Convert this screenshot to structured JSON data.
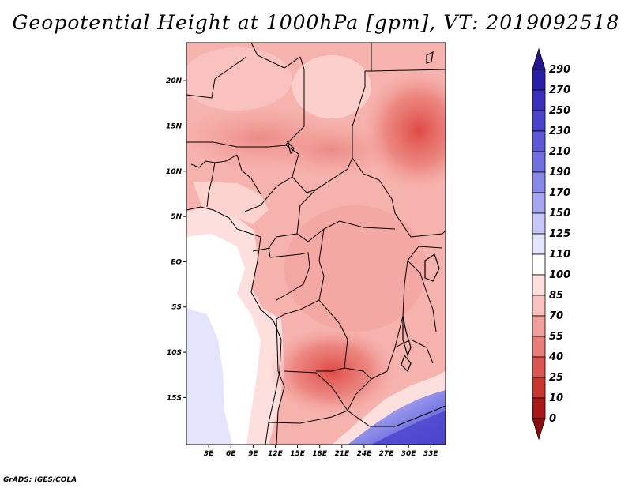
{
  "title": "Geopotential Height at 1000hPa [gpm], VT: 2019092518",
  "credit": "GrADS: IGES/COLA",
  "map": {
    "lat_labels": [
      "20N",
      "15N",
      "10N",
      "5N",
      "EQ",
      "5S",
      "10S",
      "15S"
    ],
    "lon_labels": [
      "3E",
      "6E",
      "9E",
      "12E",
      "15E",
      "18E",
      "21E",
      "24E",
      "27E",
      "30E",
      "33E"
    ]
  },
  "colorbar": {
    "levels": [
      "290",
      "270",
      "250",
      "230",
      "210",
      "190",
      "170",
      "150",
      "125",
      "110",
      "100",
      "85",
      "70",
      "55",
      "40",
      "25",
      "10",
      "0"
    ],
    "colors": [
      "#25148f",
      "#2b1ea6",
      "#3a2fbc",
      "#4a43cc",
      "#5c58d8",
      "#7070e0",
      "#8888e8",
      "#a6a6f0",
      "#c8c8f8",
      "#e4e4fc",
      "#ffffff",
      "#fde0de",
      "#f9c2be",
      "#f2a09b",
      "#e97d77",
      "#dc5650",
      "#c83430",
      "#a81818",
      "#8a0c0c"
    ]
  },
  "chart_data": {
    "type": "heatmap",
    "title": "Geopotential Height at 1000hPa [gpm], VT: 2019092518",
    "variable": "Geopotential Height at 1000hPa",
    "units": "gpm",
    "valid_time": "2019092518",
    "region": {
      "lon_range": [
        0,
        35
      ],
      "lat_range": [
        -20,
        25
      ]
    },
    "colorbar_levels": [
      0,
      10,
      25,
      40,
      55,
      70,
      85,
      100,
      110,
      125,
      150,
      170,
      190,
      210,
      230,
      250,
      270,
      290
    ],
    "approx_field": [
      {
        "area": "southern Atlantic (SW corner)",
        "range_gpm": [
          110,
          125
        ]
      },
      {
        "area": "Gulf of Guinea / Atlantic near equator",
        "range_gpm": [
          100,
          110
        ]
      },
      {
        "area": "Central Africa basin",
        "range_gpm": [
          55,
          85
        ]
      },
      {
        "area": "Angola low (around 14S,18E)",
        "range_gpm": [
          40,
          55
        ]
      },
      {
        "area": "Sudan / NE corner (around 14N,32E)",
        "range_gpm": [
          40,
          55
        ]
      },
      {
        "area": "Sahara north",
        "range_gpm": [
          70,
          100
        ]
      },
      {
        "area": "SE corner high (around 18S,32E)",
        "range_gpm": [
          170,
          230
        ]
      }
    ]
  }
}
